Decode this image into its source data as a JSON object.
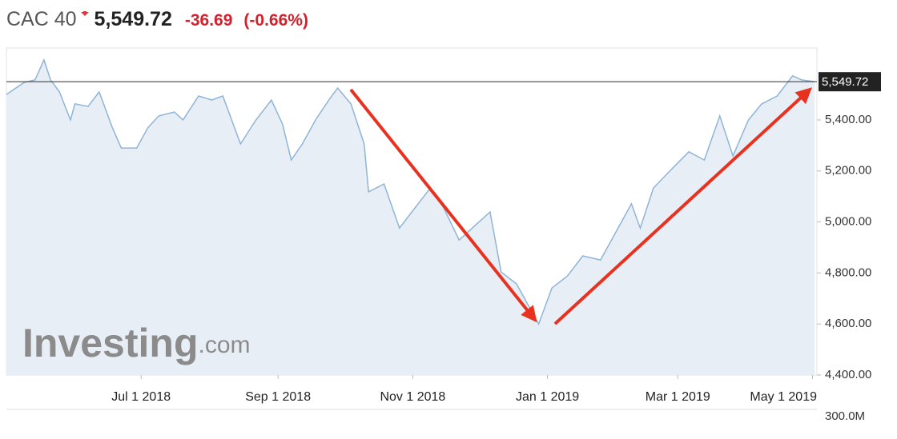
{
  "header": {
    "name": "CAC 40",
    "change": "-36.69",
    "change_pct": "(-0.66%)"
  },
  "watermark": [
    "Investing",
    ".com"
  ],
  "volume_label": "300.0M",
  "chart_data": {
    "type": "area",
    "current": {
      "value": 5549.72,
      "label": "5,549.72"
    },
    "color": "#8fb4d6",
    "fill": "#e7eef5",
    "x": [
      "2018-05-01",
      "2018-05-09",
      "2018-05-14",
      "2018-05-18",
      "2018-05-21",
      "2018-05-25",
      "2018-05-30",
      "2018-06-01",
      "2018-06-07",
      "2018-06-12",
      "2018-06-18",
      "2018-06-22",
      "2018-06-29",
      "2018-07-04",
      "2018-07-09",
      "2018-07-16",
      "2018-07-20",
      "2018-07-27",
      "2018-08-02",
      "2018-08-07",
      "2018-08-15",
      "2018-08-22",
      "2018-08-29",
      "2018-09-03",
      "2018-09-07",
      "2018-09-12",
      "2018-09-18",
      "2018-09-24",
      "2018-09-28",
      "2018-10-04",
      "2018-10-10",
      "2018-10-12",
      "2018-10-19",
      "2018-10-26",
      "2018-11-02",
      "2018-11-09",
      "2018-11-15",
      "2018-11-22",
      "2018-11-30",
      "2018-12-06",
      "2018-12-11",
      "2018-12-18",
      "2018-12-24",
      "2018-12-28",
      "2019-01-03",
      "2019-01-10",
      "2019-01-17",
      "2019-01-25",
      "2019-02-01",
      "2019-02-08",
      "2019-02-12",
      "2019-02-18",
      "2019-02-25",
      "2019-03-06",
      "2019-03-13",
      "2019-03-20",
      "2019-03-26",
      "2019-04-02",
      "2019-04-08",
      "2019-04-15",
      "2019-04-22",
      "2019-04-26",
      "2019-05-02"
    ],
    "values": [
      5500,
      5547,
      5557,
      5635,
      5557,
      5510,
      5400,
      5463,
      5453,
      5510,
      5369,
      5290,
      5290,
      5369,
      5416,
      5431,
      5400,
      5494,
      5478,
      5494,
      5306,
      5400,
      5478,
      5384,
      5243,
      5306,
      5400,
      5478,
      5525,
      5463,
      5306,
      5118,
      5149,
      4976,
      5055,
      5133,
      5055,
      4929,
      4992,
      5039,
      4804,
      4757,
      4663,
      4600,
      4741,
      4788,
      4867,
      4851,
      4961,
      5071,
      4976,
      5133,
      5196,
      5275,
      5243,
      5416,
      5259,
      5400,
      5463,
      5494,
      5573,
      5557,
      5549.72
    ],
    "xlim": [
      "2018-05-01",
      "2019-05-03"
    ],
    "xticks": [
      {
        "value": "2018-07-01",
        "label": "Jul 1 2018"
      },
      {
        "value": "2018-09-01",
        "label": "Sep 1 2018"
      },
      {
        "value": "2018-11-01",
        "label": "Nov 1 2018"
      },
      {
        "value": "2019-01-01",
        "label": "Jan 1 2019"
      },
      {
        "value": "2019-03-01",
        "label": "Mar 1 2019"
      },
      {
        "value": "2019-05-01",
        "label": "May 1 2019"
      }
    ],
    "ylim": [
      4400,
      5682
    ],
    "yticks": [
      {
        "value": 4400,
        "label": "4,400.00"
      },
      {
        "value": 4600,
        "label": "4,600.00"
      },
      {
        "value": 4800,
        "label": "4,800.00"
      },
      {
        "value": 5000,
        "label": "5,000.00"
      },
      {
        "value": 5200,
        "label": "5,200.00"
      },
      {
        "value": 5400,
        "label": "5,400.00"
      }
    ]
  }
}
